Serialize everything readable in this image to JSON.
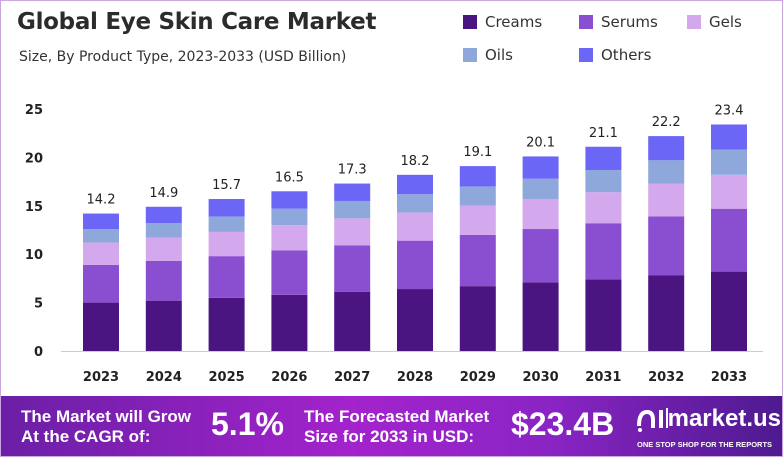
{
  "chart_data": {
    "type": "bar",
    "stacked": true,
    "title": "Global Eye Skin Care Market",
    "subtitle": "Size, By Product Type, 2023-2033 (USD Billion)",
    "categories": [
      "2023",
      "2024",
      "2025",
      "2026",
      "2027",
      "2028",
      "2029",
      "2030",
      "2031",
      "2032",
      "2033"
    ],
    "totals": [
      14.2,
      14.9,
      15.7,
      16.5,
      17.3,
      18.2,
      19.1,
      20.1,
      21.1,
      22.2,
      23.4
    ],
    "total_labels": [
      "14.2",
      "14.9",
      "15.7",
      "16.5",
      "17.3",
      "18.2",
      "19.1",
      "20.1",
      "21.1",
      "22.2",
      "23.4"
    ],
    "series": [
      {
        "name": "Creams",
        "color": "#4a1580",
        "values": [
          5.0,
          5.2,
          5.5,
          5.8,
          6.1,
          6.4,
          6.7,
          7.1,
          7.4,
          7.8,
          8.2
        ]
      },
      {
        "name": "Serums",
        "color": "#8a4fd0",
        "values": [
          3.9,
          4.1,
          4.3,
          4.6,
          4.8,
          5.0,
          5.3,
          5.5,
          5.8,
          6.1,
          6.5
        ]
      },
      {
        "name": "Gels",
        "color": "#d4a8ec",
        "values": [
          2.3,
          2.4,
          2.5,
          2.6,
          2.8,
          2.9,
          3.0,
          3.1,
          3.2,
          3.4,
          3.5
        ]
      },
      {
        "name": "Oils",
        "color": "#8fa8dc",
        "values": [
          1.4,
          1.5,
          1.6,
          1.7,
          1.8,
          1.9,
          2.0,
          2.1,
          2.3,
          2.4,
          2.6
        ]
      },
      {
        "name": "Others",
        "color": "#6b66f5",
        "values": [
          1.6,
          1.7,
          1.8,
          1.8,
          1.8,
          2.0,
          2.1,
          2.3,
          2.4,
          2.5,
          2.6
        ]
      }
    ],
    "ylim": [
      0,
      25
    ],
    "yticks": [
      "0",
      "5",
      "10",
      "15",
      "20",
      "25"
    ],
    "xlabel": "",
    "ylabel": "",
    "grid": false,
    "legend_position": "top-right"
  },
  "banner": {
    "cagr_label_1": "The Market will Grow",
    "cagr_label_2": "At the CAGR of:",
    "cagr_value": "5.1%",
    "forecast_label_1": "The Forecasted Market",
    "forecast_label_2": "Size for 2033 in USD:",
    "forecast_value": "$23.4B",
    "logo_text": "market.us",
    "logo_tagline": "ONE STOP SHOP FOR THE REPORTS"
  }
}
